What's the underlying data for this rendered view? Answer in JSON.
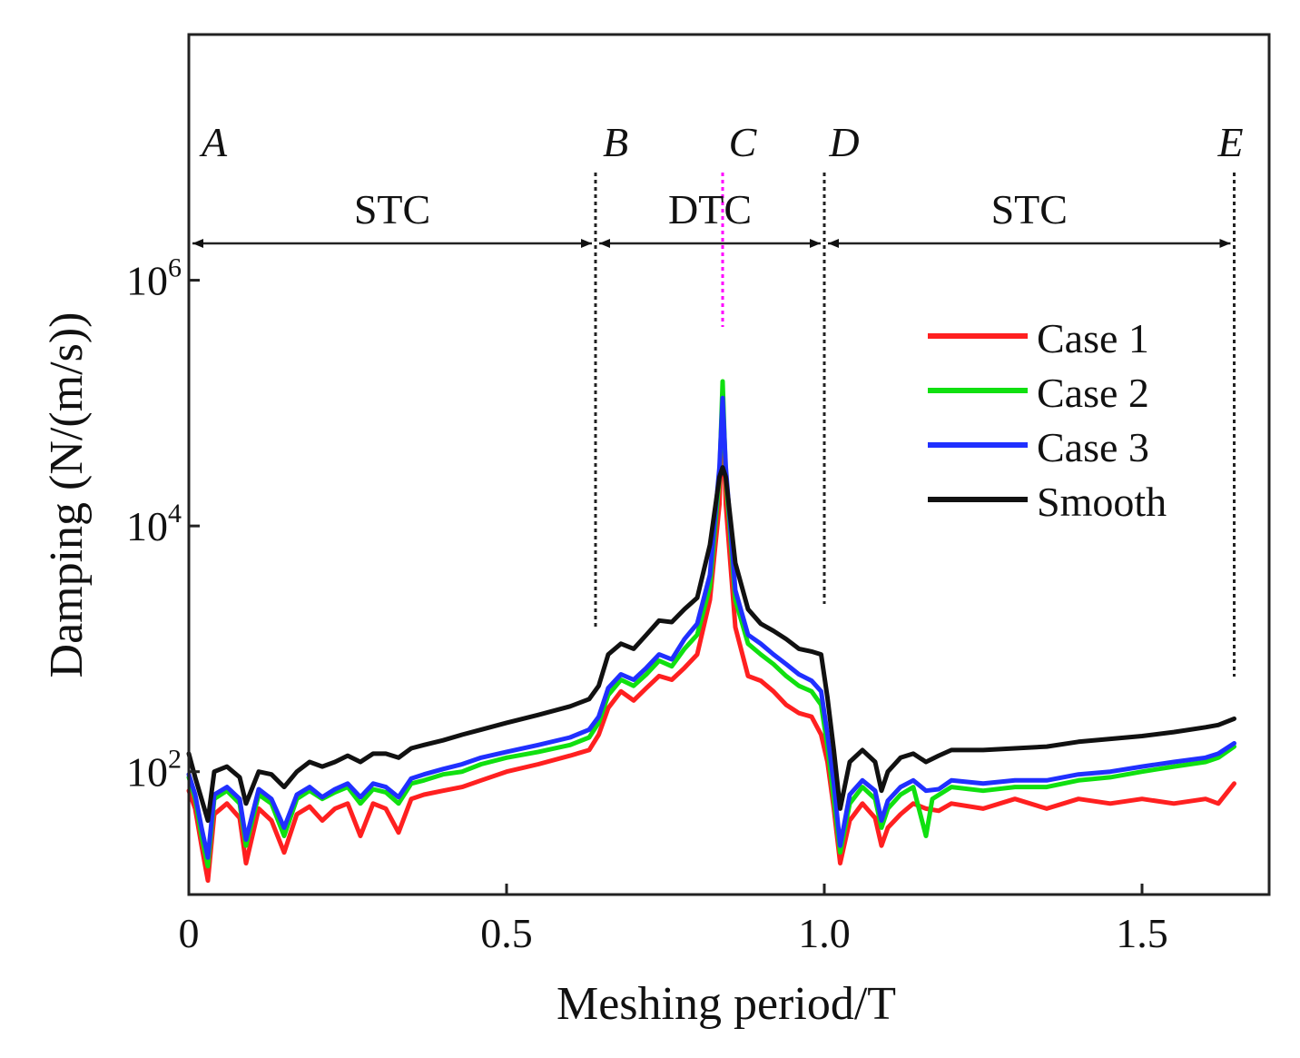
{
  "chart_data": {
    "type": "line",
    "xlabel": "Meshing period/T",
    "ylabel": "Damping (N/(m/s))",
    "yscale": "log",
    "xlim": [
      0,
      1.7
    ],
    "ylim": [
      10,
      100000000
    ],
    "xticks": [
      {
        "value": 0,
        "label": "0"
      },
      {
        "value": 0.5,
        "label": "0.5"
      },
      {
        "value": 1.0,
        "label": "1.0"
      },
      {
        "value": 1.5,
        "label": "1.5"
      }
    ],
    "yticks": [
      {
        "value": 100,
        "base": "10",
        "exp": "2"
      },
      {
        "value": 10000,
        "base": "10",
        "exp": "4"
      },
      {
        "value": 1000000,
        "base": "10",
        "exp": "6"
      }
    ],
    "points": [
      {
        "label": "A",
        "x": 0.0
      },
      {
        "label": "B",
        "x": 0.64
      },
      {
        "label": "C",
        "x": 0.84
      },
      {
        "label": "D",
        "x": 1.0
      },
      {
        "label": "E",
        "x": 1.645
      }
    ],
    "regions": [
      {
        "label": "STC",
        "from": 0.0,
        "to": 0.64
      },
      {
        "label": "DTC",
        "from": 0.64,
        "to": 1.0
      },
      {
        "label": "STC",
        "from": 1.0,
        "to": 1.645
      }
    ],
    "series": [
      {
        "name": "Case 1",
        "color": "#ff2020",
        "x": [
          0,
          0.01,
          0.02,
          0.03,
          0.04,
          0.06,
          0.08,
          0.09,
          0.11,
          0.13,
          0.15,
          0.17,
          0.19,
          0.21,
          0.23,
          0.25,
          0.27,
          0.29,
          0.31,
          0.33,
          0.35,
          0.37,
          0.4,
          0.43,
          0.46,
          0.5,
          0.55,
          0.6,
          0.63,
          0.645,
          0.66,
          0.68,
          0.7,
          0.72,
          0.74,
          0.76,
          0.78,
          0.8,
          0.82,
          0.835,
          0.84,
          0.845,
          0.86,
          0.88,
          0.9,
          0.92,
          0.94,
          0.96,
          0.98,
          0.995,
          1.005,
          1.015,
          1.025,
          1.04,
          1.06,
          1.08,
          1.09,
          1.1,
          1.12,
          1.14,
          1.16,
          1.18,
          1.2,
          1.25,
          1.3,
          1.35,
          1.4,
          1.45,
          1.5,
          1.55,
          1.6,
          1.62,
          1.645
        ],
        "y": [
          70,
          50,
          25,
          13,
          45,
          55,
          42,
          18,
          50,
          40,
          22,
          45,
          52,
          40,
          50,
          55,
          30,
          55,
          50,
          32,
          60,
          65,
          70,
          75,
          85,
          100,
          115,
          135,
          150,
          200,
          330,
          450,
          380,
          480,
          600,
          560,
          700,
          900,
          2500,
          15000,
          90000,
          15000,
          1500,
          600,
          550,
          450,
          350,
          300,
          280,
          200,
          120,
          50,
          18,
          40,
          55,
          42,
          25,
          35,
          45,
          55,
          50,
          48,
          55,
          50,
          60,
          50,
          60,
          55,
          60,
          55,
          60,
          55,
          80
        ]
      },
      {
        "name": "Case 2",
        "color": "#10e010",
        "x": [
          0,
          0.01,
          0.02,
          0.03,
          0.04,
          0.06,
          0.08,
          0.09,
          0.11,
          0.13,
          0.15,
          0.17,
          0.19,
          0.21,
          0.23,
          0.25,
          0.27,
          0.29,
          0.31,
          0.33,
          0.35,
          0.37,
          0.4,
          0.43,
          0.46,
          0.5,
          0.55,
          0.6,
          0.63,
          0.645,
          0.66,
          0.68,
          0.7,
          0.72,
          0.74,
          0.76,
          0.78,
          0.8,
          0.82,
          0.835,
          0.84,
          0.845,
          0.86,
          0.88,
          0.9,
          0.92,
          0.94,
          0.96,
          0.98,
          0.995,
          1.005,
          1.015,
          1.025,
          1.04,
          1.06,
          1.08,
          1.09,
          1.1,
          1.12,
          1.14,
          1.16,
          1.17,
          1.2,
          1.25,
          1.3,
          1.35,
          1.4,
          1.45,
          1.5,
          1.55,
          1.6,
          1.62,
          1.645
        ],
        "y": [
          90,
          60,
          30,
          17,
          60,
          70,
          55,
          25,
          65,
          55,
          30,
          60,
          70,
          60,
          68,
          75,
          55,
          72,
          68,
          55,
          80,
          85,
          95,
          100,
          115,
          130,
          145,
          165,
          190,
          250,
          420,
          560,
          500,
          620,
          800,
          720,
          1000,
          1300,
          3200,
          25000,
          150000,
          25000,
          2500,
          1100,
          900,
          750,
          600,
          500,
          450,
          350,
          160,
          60,
          22,
          55,
          75,
          60,
          35,
          50,
          65,
          75,
          30,
          60,
          75,
          70,
          75,
          75,
          85,
          90,
          100,
          110,
          120,
          130,
          160
        ]
      },
      {
        "name": "Case 3",
        "color": "#2030ff",
        "x": [
          0,
          0.01,
          0.02,
          0.03,
          0.04,
          0.06,
          0.08,
          0.09,
          0.11,
          0.13,
          0.15,
          0.17,
          0.19,
          0.21,
          0.23,
          0.25,
          0.27,
          0.29,
          0.31,
          0.33,
          0.35,
          0.37,
          0.4,
          0.43,
          0.46,
          0.5,
          0.55,
          0.6,
          0.63,
          0.645,
          0.66,
          0.68,
          0.7,
          0.72,
          0.74,
          0.76,
          0.78,
          0.8,
          0.82,
          0.835,
          0.84,
          0.845,
          0.86,
          0.88,
          0.9,
          0.92,
          0.94,
          0.96,
          0.98,
          0.995,
          1.005,
          1.015,
          1.025,
          1.04,
          1.06,
          1.08,
          1.09,
          1.1,
          1.12,
          1.14,
          1.16,
          1.18,
          1.2,
          1.25,
          1.3,
          1.35,
          1.4,
          1.45,
          1.5,
          1.55,
          1.6,
          1.62,
          1.645
        ],
        "y": [
          95,
          65,
          35,
          20,
          65,
          75,
          60,
          28,
          72,
          60,
          35,
          65,
          75,
          62,
          72,
          80,
          62,
          80,
          75,
          62,
          88,
          95,
          105,
          115,
          130,
          145,
          165,
          190,
          220,
          280,
          480,
          620,
          560,
          700,
          900,
          820,
          1200,
          1600,
          4000,
          30000,
          110000,
          30000,
          3000,
          1300,
          1100,
          900,
          750,
          620,
          550,
          450,
          200,
          80,
          25,
          65,
          85,
          70,
          40,
          58,
          75,
          85,
          70,
          72,
          85,
          80,
          85,
          85,
          95,
          100,
          110,
          120,
          130,
          140,
          170
        ]
      },
      {
        "name": "Smooth",
        "color": "#111111",
        "x": [
          0,
          0.01,
          0.02,
          0.03,
          0.04,
          0.06,
          0.08,
          0.09,
          0.11,
          0.13,
          0.15,
          0.17,
          0.19,
          0.21,
          0.23,
          0.25,
          0.27,
          0.29,
          0.31,
          0.33,
          0.35,
          0.37,
          0.4,
          0.43,
          0.46,
          0.5,
          0.55,
          0.6,
          0.63,
          0.645,
          0.66,
          0.68,
          0.7,
          0.72,
          0.74,
          0.76,
          0.78,
          0.8,
          0.82,
          0.835,
          0.84,
          0.845,
          0.86,
          0.88,
          0.9,
          0.92,
          0.94,
          0.96,
          0.98,
          0.995,
          1.005,
          1.015,
          1.025,
          1.04,
          1.06,
          1.08,
          1.09,
          1.1,
          1.12,
          1.14,
          1.16,
          1.18,
          1.2,
          1.25,
          1.3,
          1.35,
          1.4,
          1.45,
          1.5,
          1.55,
          1.6,
          1.62,
          1.645
        ],
        "y": [
          140,
          90,
          60,
          40,
          100,
          110,
          90,
          55,
          100,
          95,
          75,
          100,
          120,
          110,
          120,
          135,
          120,
          140,
          140,
          130,
          155,
          165,
          180,
          200,
          220,
          250,
          290,
          340,
          390,
          500,
          900,
          1100,
          1000,
          1300,
          1700,
          1650,
          2100,
          2600,
          7000,
          25000,
          30000,
          25000,
          5000,
          2100,
          1600,
          1400,
          1200,
          1000,
          950,
          900,
          400,
          150,
          50,
          120,
          150,
          120,
          70,
          100,
          130,
          140,
          120,
          135,
          150,
          150,
          155,
          160,
          175,
          185,
          195,
          210,
          230,
          240,
          270
        ]
      }
    ],
    "legend": {
      "position": "right",
      "entries": [
        "Case 1",
        "Case 2",
        "Case 3",
        "Smooth"
      ]
    }
  }
}
